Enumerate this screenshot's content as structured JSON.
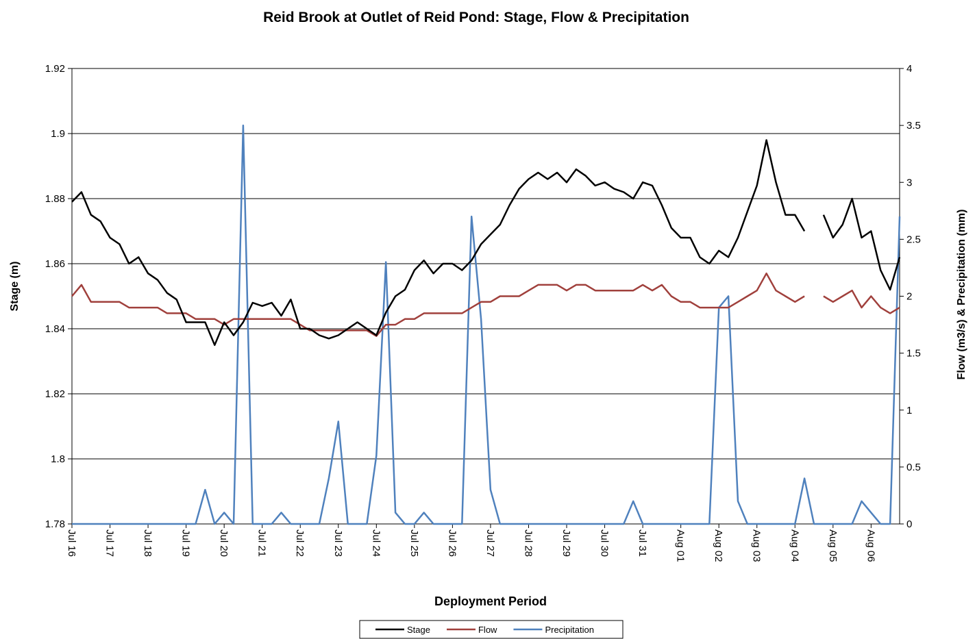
{
  "chart_data": {
    "type": "line",
    "title": "Reid Brook at Outlet of Reid Pond: Stage, Flow & Precipitation",
    "x_label": "Deployment Period",
    "y_label": "Stage (m)",
    "y2_label": "Flow (m3/s) & Precipitation (mm)",
    "grid": true,
    "legend": "bottom",
    "xlim": [
      0,
      21.75
    ],
    "xticks": [
      {
        "value": 0,
        "label": "Jul 16"
      },
      {
        "value": 1,
        "label": "Jul 17"
      },
      {
        "value": 2,
        "label": "Jul 18"
      },
      {
        "value": 3,
        "label": "Jul 19"
      },
      {
        "value": 4,
        "label": "Jul 20"
      },
      {
        "value": 5,
        "label": "Jul 21"
      },
      {
        "value": 6,
        "label": "Jul 22"
      },
      {
        "value": 7,
        "label": "Jul 23"
      },
      {
        "value": 8,
        "label": "Jul 24"
      },
      {
        "value": 9,
        "label": "Jul 25"
      },
      {
        "value": 10,
        "label": "Jul 26"
      },
      {
        "value": 11,
        "label": "Jul 27"
      },
      {
        "value": 12,
        "label": "Jul 28"
      },
      {
        "value": 13,
        "label": "Jul 29"
      },
      {
        "value": 14,
        "label": "Jul 30"
      },
      {
        "value": 15,
        "label": "Jul 31"
      },
      {
        "value": 16,
        "label": "Aug 01"
      },
      {
        "value": 17,
        "label": "Aug 02"
      },
      {
        "value": 18,
        "label": "Aug 03"
      },
      {
        "value": 19,
        "label": "Aug 04"
      },
      {
        "value": 20,
        "label": "Aug 05"
      },
      {
        "value": 21,
        "label": "Aug 06"
      }
    ],
    "ylim": [
      1.78,
      1.92
    ],
    "yticks": [
      1.78,
      1.8,
      1.82,
      1.84,
      1.86,
      1.88,
      1.9,
      1.92
    ],
    "y2lim": [
      0,
      4
    ],
    "y2ticks": [
      0,
      0.5,
      1,
      1.5,
      2,
      2.5,
      3,
      3.5,
      4
    ],
    "x": [
      0,
      0.25,
      0.5,
      0.75,
      1,
      1.25,
      1.5,
      1.75,
      2,
      2.25,
      2.5,
      2.75,
      3,
      3.25,
      3.5,
      3.75,
      4,
      4.25,
      4.5,
      4.75,
      5,
      5.25,
      5.5,
      5.75,
      6,
      6.25,
      6.5,
      6.75,
      7,
      7.25,
      7.5,
      7.75,
      8,
      8.25,
      8.5,
      8.75,
      9,
      9.25,
      9.5,
      9.75,
      10,
      10.25,
      10.5,
      10.75,
      11,
      11.25,
      11.5,
      11.75,
      12,
      12.25,
      12.5,
      12.75,
      13,
      13.25,
      13.5,
      13.75,
      14,
      14.25,
      14.5,
      14.75,
      15,
      15.25,
      15.5,
      15.75,
      16,
      16.25,
      16.5,
      16.75,
      17,
      17.25,
      17.5,
      17.75,
      18,
      18.25,
      18.5,
      18.75,
      19,
      19.25,
      19.5,
      19.75,
      20,
      20.25,
      20.5,
      20.75,
      21,
      21.25,
      21.5,
      21.75
    ],
    "series": [
      {
        "name": "Stage",
        "color": "#000000",
        "axis": "y",
        "values": [
          1.879,
          1.882,
          1.875,
          1.873,
          1.868,
          1.866,
          1.86,
          1.862,
          1.857,
          1.855,
          1.851,
          1.849,
          1.842,
          1.842,
          1.842,
          1.835,
          1.842,
          1.838,
          1.842,
          1.848,
          1.847,
          1.848,
          1.844,
          1.849,
          1.84,
          1.84,
          1.838,
          1.837,
          1.838,
          1.84,
          1.842,
          1.84,
          1.838,
          1.845,
          1.85,
          1.852,
          1.858,
          1.861,
          1.857,
          1.86,
          1.86,
          1.858,
          1.861,
          1.866,
          1.869,
          1.872,
          1.878,
          1.883,
          1.886,
          1.888,
          1.886,
          1.888,
          1.885,
          1.889,
          1.887,
          1.884,
          1.885,
          1.883,
          1.882,
          1.88,
          1.885,
          1.884,
          1.878,
          1.871,
          1.868,
          1.868,
          1.862,
          1.86,
          1.864,
          1.862,
          1.868,
          1.876,
          1.884,
          1.898,
          1.885,
          1.875,
          1.875,
          1.87,
          null,
          1.875,
          1.868,
          1.872,
          1.88,
          1.868,
          1.87,
          1.858,
          1.852,
          1.862
        ]
      },
      {
        "name": "Flow",
        "color": "#a0403c",
        "axis": "y2",
        "values": [
          2.0,
          2.1,
          1.95,
          1.95,
          1.95,
          1.95,
          1.9,
          1.9,
          1.9,
          1.9,
          1.85,
          1.85,
          1.85,
          1.8,
          1.8,
          1.8,
          1.75,
          1.8,
          1.8,
          1.8,
          1.8,
          1.8,
          1.8,
          1.8,
          1.75,
          1.7,
          1.7,
          1.7,
          1.7,
          1.7,
          1.7,
          1.7,
          1.65,
          1.75,
          1.75,
          1.8,
          1.8,
          1.85,
          1.85,
          1.85,
          1.85,
          1.85,
          1.9,
          1.95,
          1.95,
          2.0,
          2.0,
          2.0,
          2.05,
          2.1,
          2.1,
          2.1,
          2.05,
          2.1,
          2.1,
          2.05,
          2.05,
          2.05,
          2.05,
          2.05,
          2.1,
          2.05,
          2.1,
          2.0,
          1.95,
          1.95,
          1.9,
          1.9,
          1.9,
          1.9,
          1.95,
          2.0,
          2.05,
          2.2,
          2.05,
          2.0,
          1.95,
          2.0,
          null,
          2.0,
          1.95,
          2.0,
          2.05,
          1.9,
          2.0,
          1.9,
          1.85,
          1.9
        ]
      },
      {
        "name": "Precipitation",
        "color": "#4f81bd",
        "axis": "y2",
        "values": [
          0,
          0,
          0,
          0,
          0,
          0,
          0,
          0,
          0,
          0,
          0,
          0,
          0,
          0,
          0.3,
          0,
          0.1,
          0,
          3.5,
          0,
          0,
          0,
          0.1,
          0,
          0,
          0,
          0,
          0.4,
          0.9,
          0,
          0,
          0,
          0.6,
          2.3,
          0.1,
          0,
          0,
          0.1,
          0,
          0,
          0,
          0,
          2.7,
          1.8,
          0.3,
          0,
          0,
          0,
          0,
          0,
          0,
          0,
          0,
          0,
          0,
          0,
          0,
          0,
          0,
          0.2,
          0,
          0,
          0,
          0,
          0,
          0,
          0,
          0,
          1.9,
          2.0,
          0.2,
          0,
          0,
          0,
          0,
          0,
          0,
          0.4,
          0,
          0,
          0,
          0,
          0,
          0.2,
          0.1,
          0,
          0,
          2.7
        ]
      }
    ]
  }
}
